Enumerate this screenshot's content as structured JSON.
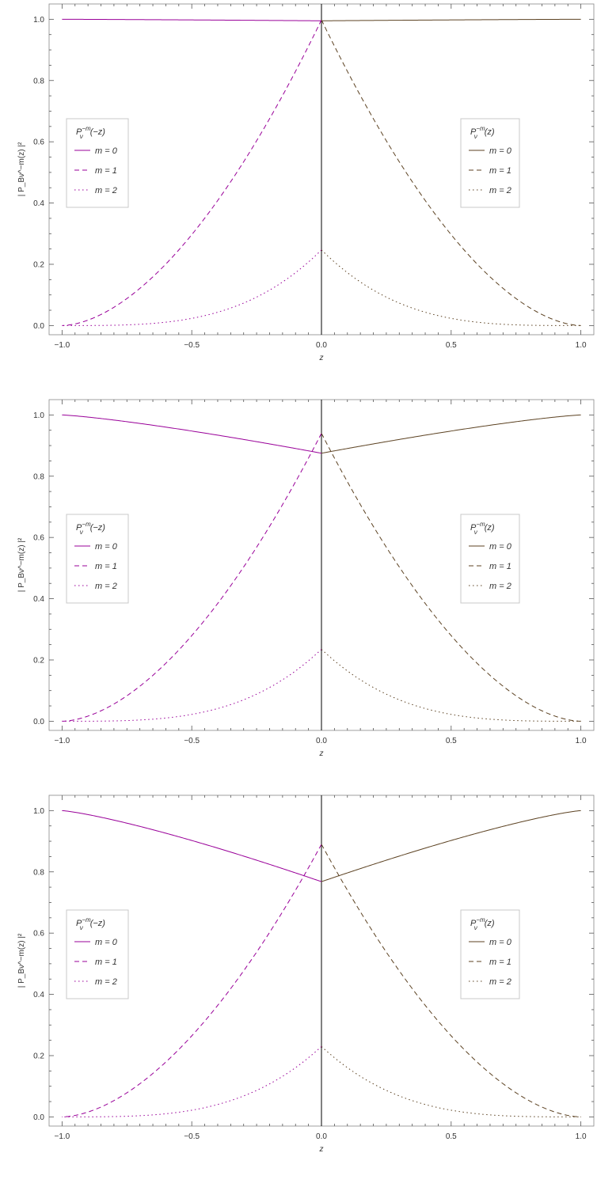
{
  "colors": {
    "left": "#990099",
    "right": "#5c4222"
  },
  "chart_data": [
    {
      "type": "line",
      "title": "",
      "xlabel": "z",
      "ylabel": "| P_Bν^−m(z) |²",
      "xlim": [
        -1.05,
        1.05
      ],
      "ylim": [
        -0.03,
        1.05
      ],
      "xticks": [
        "−1.0",
        "−0.5",
        "0.0",
        "0.5",
        "1.0"
      ],
      "yticks": [
        "0.0",
        "0.2",
        "0.4",
        "0.6",
        "0.8",
        "1.0"
      ],
      "params": {
        "m0_at_0": 0.995,
        "m1_at_0": 0.998,
        "m2_at_0": 0.247
      },
      "legends": [
        {
          "title_main": "P",
          "title_sup": "−m",
          "title_sub": "ν",
          "title_arg": "(−z)",
          "entries": [
            "m = 0",
            "m = 1",
            "m = 2"
          ]
        },
        {
          "title_main": "P",
          "title_sup": "−m",
          "title_sub": "ν",
          "title_arg": "(z)",
          "entries": [
            "m = 0",
            "m = 1",
            "m = 2"
          ]
        }
      ]
    },
    {
      "type": "line",
      "title": "",
      "xlabel": "z",
      "ylabel": "| P_Bν^−m(z) |²",
      "xlim": [
        -1.05,
        1.05
      ],
      "ylim": [
        -0.03,
        1.05
      ],
      "xticks": [
        "−1.0",
        "−0.5",
        "0.0",
        "0.5",
        "1.0"
      ],
      "yticks": [
        "0.0",
        "0.2",
        "0.4",
        "0.6",
        "0.8",
        "1.0"
      ],
      "params": {
        "m0_at_0": 0.875,
        "m1_at_0": 0.94,
        "m2_at_0": 0.235
      },
      "legends": [
        {
          "title_main": "P",
          "title_sup": "−m",
          "title_sub": "ν",
          "title_arg": "(−z)",
          "entries": [
            "m = 0",
            "m = 1",
            "m = 2"
          ]
        },
        {
          "title_main": "P",
          "title_sup": "−m",
          "title_sub": "ν",
          "title_arg": "(z)",
          "entries": [
            "m = 0",
            "m = 1",
            "m = 2"
          ]
        }
      ]
    },
    {
      "type": "line",
      "title": "",
      "xlabel": "z",
      "ylabel": "| P_Bν^−m(z) |²",
      "xlim": [
        -1.05,
        1.05
      ],
      "ylim": [
        -0.03,
        1.05
      ],
      "xticks": [
        "−1.0",
        "−0.5",
        "0.0",
        "0.5",
        "1.0"
      ],
      "yticks": [
        "0.0",
        "0.2",
        "0.4",
        "0.6",
        "0.8",
        "1.0"
      ],
      "params": {
        "m0_at_0": 0.768,
        "m1_at_0": 0.89,
        "m2_at_0": 0.23
      },
      "legends": [
        {
          "title_main": "P",
          "title_sup": "−m",
          "title_sub": "ν",
          "title_arg": "(−z)",
          "entries": [
            "m = 0",
            "m = 1",
            "m = 2"
          ]
        },
        {
          "title_main": "P",
          "title_sup": "−m",
          "title_sub": "ν",
          "title_arg": "(z)",
          "entries": [
            "m = 0",
            "m = 1",
            "m = 2"
          ]
        }
      ]
    }
  ]
}
